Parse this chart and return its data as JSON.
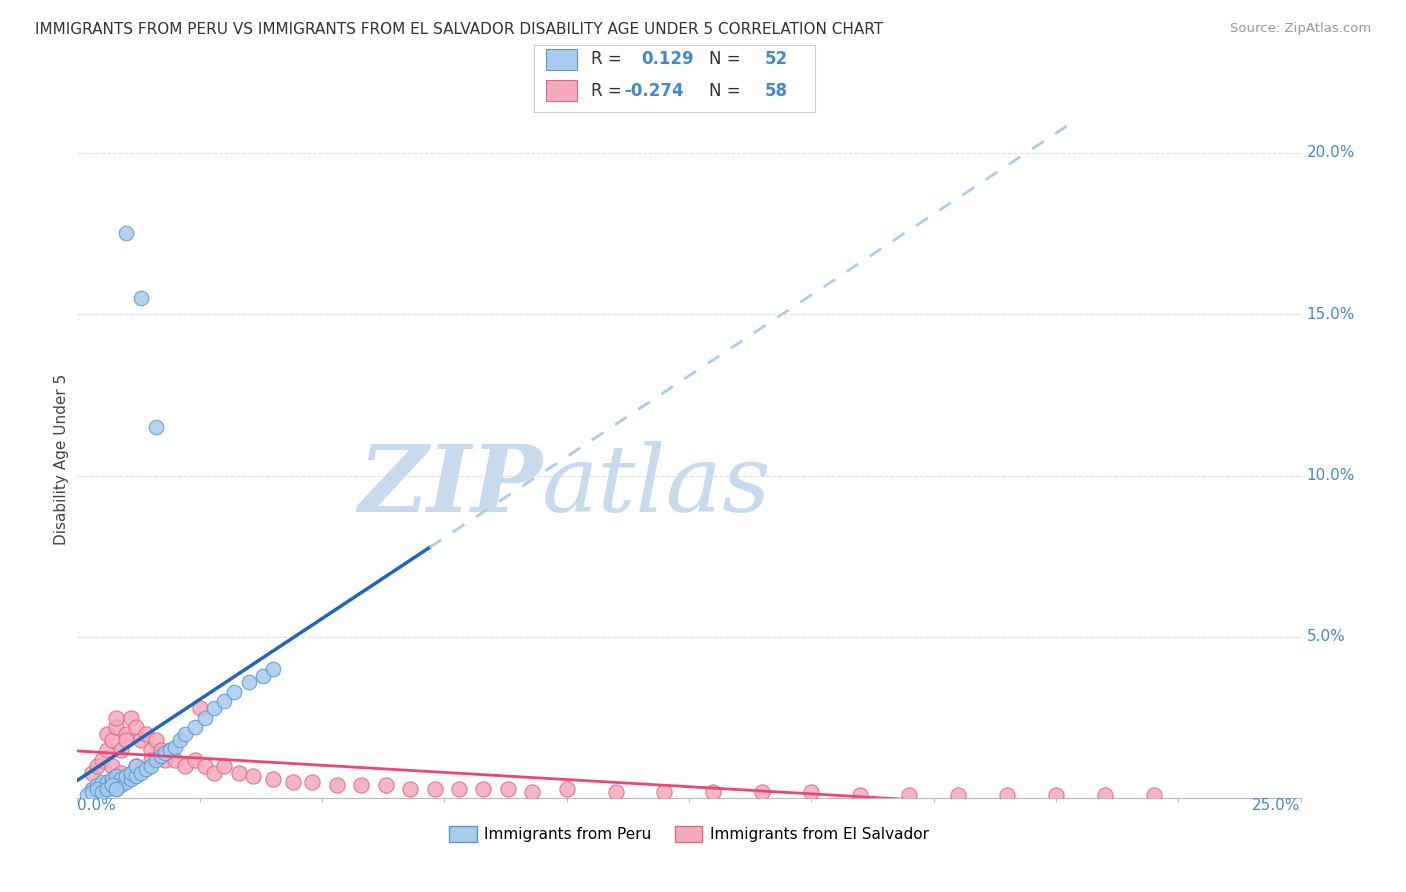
{
  "title": "IMMIGRANTS FROM PERU VS IMMIGRANTS FROM EL SALVADOR DISABILITY AGE UNDER 5 CORRELATION CHART",
  "source": "Source: ZipAtlas.com",
  "ylabel": "Disability Age Under 5",
  "xlim": [
    0.0,
    0.25
  ],
  "ylim": [
    0.0,
    0.21
  ],
  "peru_R": 0.129,
  "peru_N": 52,
  "salvador_R": -0.274,
  "salvador_N": 58,
  "blue_scatter_face": "#A8CBEE",
  "blue_scatter_edge": "#5599CC",
  "pink_scatter_face": "#F5AABC",
  "pink_scatter_edge": "#DD6688",
  "blue_line_color": "#2266BB",
  "pink_line_color": "#EE4477",
  "blue_dashed_color": "#AACCEE",
  "watermark_zip_color": "#C8DAEE",
  "watermark_atlas_color": "#C8DAEE",
  "legend_label_peru": "Immigrants from Peru",
  "legend_label_salvador": "Immigrants from El Salvador",
  "grid_color": "#DDDDDD",
  "peru_x": [
    0.01,
    0.013,
    0.016,
    0.003,
    0.003,
    0.004,
    0.004,
    0.005,
    0.005,
    0.005,
    0.006,
    0.006,
    0.006,
    0.007,
    0.007,
    0.007,
    0.008,
    0.008,
    0.008,
    0.009,
    0.009,
    0.01,
    0.01,
    0.011,
    0.011,
    0.012,
    0.012,
    0.013,
    0.014,
    0.015,
    0.016,
    0.017,
    0.018,
    0.019,
    0.02,
    0.021,
    0.022,
    0.024,
    0.026,
    0.028,
    0.03,
    0.032,
    0.035,
    0.038,
    0.04,
    0.002,
    0.003,
    0.004,
    0.005,
    0.006,
    0.007,
    0.008
  ],
  "peru_y": [
    0.175,
    0.155,
    0.115,
    0.002,
    0.003,
    0.002,
    0.004,
    0.003,
    0.004,
    0.005,
    0.003,
    0.004,
    0.005,
    0.004,
    0.005,
    0.006,
    0.003,
    0.005,
    0.007,
    0.004,
    0.006,
    0.005,
    0.007,
    0.006,
    0.008,
    0.007,
    0.01,
    0.008,
    0.009,
    0.01,
    0.012,
    0.013,
    0.014,
    0.015,
    0.016,
    0.018,
    0.02,
    0.022,
    0.025,
    0.028,
    0.03,
    0.033,
    0.036,
    0.038,
    0.04,
    0.001,
    0.002,
    0.003,
    0.002,
    0.003,
    0.004,
    0.003
  ],
  "salvador_x": [
    0.003,
    0.004,
    0.005,
    0.006,
    0.006,
    0.007,
    0.008,
    0.008,
    0.009,
    0.01,
    0.01,
    0.011,
    0.012,
    0.013,
    0.014,
    0.015,
    0.016,
    0.017,
    0.018,
    0.019,
    0.02,
    0.022,
    0.024,
    0.026,
    0.028,
    0.03,
    0.033,
    0.036,
    0.04,
    0.044,
    0.048,
    0.053,
    0.058,
    0.063,
    0.068,
    0.073,
    0.078,
    0.083,
    0.088,
    0.093,
    0.1,
    0.11,
    0.12,
    0.13,
    0.14,
    0.15,
    0.16,
    0.17,
    0.18,
    0.19,
    0.2,
    0.21,
    0.22,
    0.007,
    0.009,
    0.012,
    0.015,
    0.025
  ],
  "salvador_y": [
    0.008,
    0.01,
    0.012,
    0.015,
    0.02,
    0.018,
    0.022,
    0.025,
    0.015,
    0.02,
    0.018,
    0.025,
    0.022,
    0.018,
    0.02,
    0.015,
    0.018,
    0.015,
    0.012,
    0.015,
    0.012,
    0.01,
    0.012,
    0.01,
    0.008,
    0.01,
    0.008,
    0.007,
    0.006,
    0.005,
    0.005,
    0.004,
    0.004,
    0.004,
    0.003,
    0.003,
    0.003,
    0.003,
    0.003,
    0.002,
    0.003,
    0.002,
    0.002,
    0.002,
    0.002,
    0.002,
    0.001,
    0.001,
    0.001,
    0.001,
    0.001,
    0.001,
    0.001,
    0.01,
    0.008,
    0.01,
    0.012,
    0.028
  ]
}
